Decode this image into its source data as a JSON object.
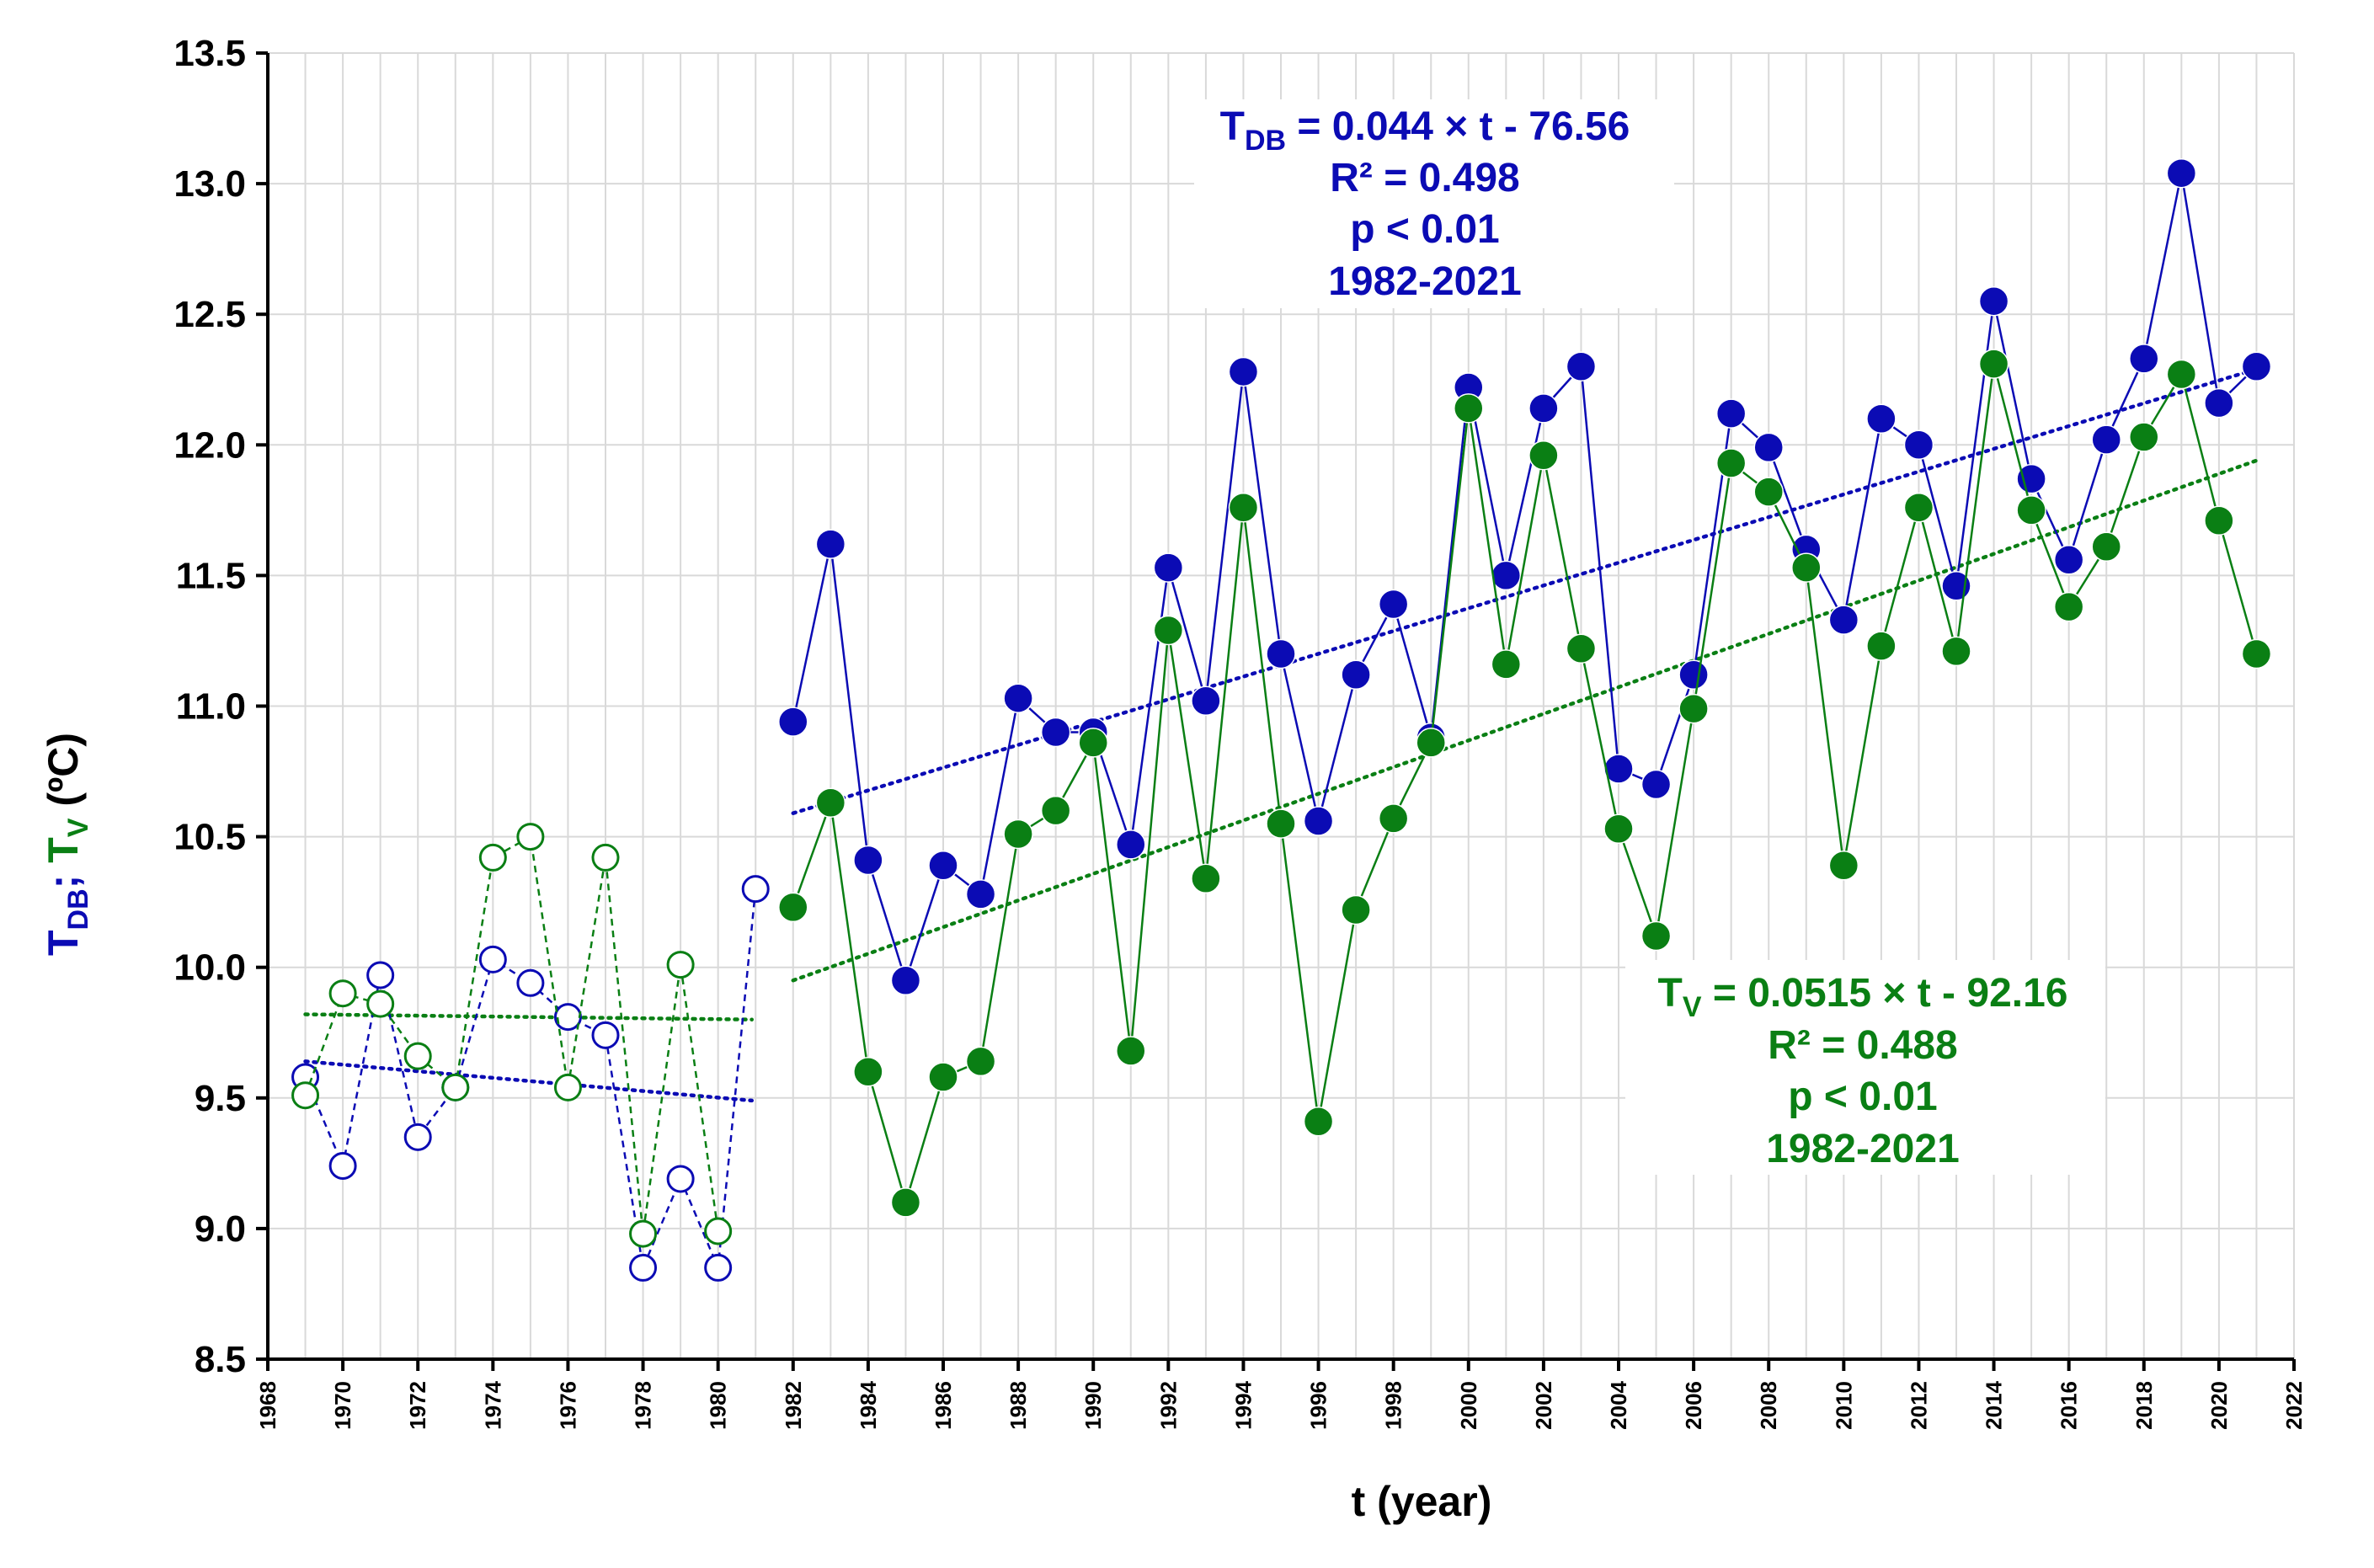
{
  "chart_data": {
    "type": "scatter",
    "xlabel": "t (year)",
    "ylabel": {
      "prefix": "T",
      "db_sub": "DB",
      "sep": "; ",
      "tv_prefix": "T",
      "v_sub": "V",
      "unit": " (ºC)"
    },
    "xlim": [
      1968,
      2022
    ],
    "ylim": [
      8.5,
      13.5
    ],
    "x_ticks": [
      1968,
      1970,
      1972,
      1974,
      1976,
      1978,
      1980,
      1982,
      1984,
      1986,
      1988,
      1990,
      1992,
      1994,
      1996,
      1998,
      2000,
      2002,
      2004,
      2006,
      2008,
      2010,
      2012,
      2014,
      2016,
      2018,
      2020,
      2022
    ],
    "y_ticks": [
      "8.5",
      "9.0",
      "9.5",
      "10.0",
      "10.5",
      "11.0",
      "11.5",
      "12.0",
      "12.5",
      "13.0",
      "13.5"
    ],
    "grid": true,
    "colors": {
      "tdb": "#0b0bb4",
      "tv": "#0a7f14"
    },
    "series": [
      {
        "name": "T_DB 1969-1981",
        "color": "#0b0bb4",
        "style": "open-dashed",
        "x": [
          1969,
          1970,
          1971,
          1972,
          1973,
          1974,
          1975,
          1976,
          1977,
          1978,
          1979,
          1980,
          1981
        ],
        "values": [
          9.58,
          9.24,
          9.97,
          9.35,
          9.54,
          10.03,
          9.94,
          9.81,
          9.74,
          8.85,
          9.19,
          8.85,
          10.3
        ]
      },
      {
        "name": "T_V 1969-1981",
        "color": "#0a7f14",
        "style": "open-dashed",
        "x": [
          1969,
          1970,
          1971,
          1972,
          1973,
          1974,
          1975,
          1976,
          1977,
          1978,
          1979,
          1980
        ],
        "values": [
          9.51,
          9.9,
          9.86,
          9.66,
          9.54,
          10.42,
          10.5,
          9.54,
          10.42,
          8.98,
          10.01,
          8.99
        ]
      },
      {
        "name": "T_DB 1982-2021",
        "color": "#0b0bb4",
        "style": "filled-solid",
        "x": [
          1982,
          1983,
          1984,
          1985,
          1986,
          1987,
          1988,
          1989,
          1990,
          1991,
          1992,
          1993,
          1994,
          1995,
          1996,
          1997,
          1998,
          1999,
          2000,
          2001,
          2002,
          2003,
          2004,
          2005,
          2006,
          2007,
          2008,
          2009,
          2010,
          2011,
          2012,
          2013,
          2014,
          2015,
          2016,
          2017,
          2018,
          2019,
          2020,
          2021
        ],
        "values": [
          10.94,
          11.62,
          10.41,
          9.95,
          10.39,
          10.28,
          11.03,
          10.9,
          10.9,
          10.47,
          11.53,
          11.02,
          12.28,
          11.2,
          10.56,
          11.12,
          11.39,
          10.88,
          12.22,
          11.5,
          12.14,
          12.3,
          10.76,
          10.7,
          11.12,
          12.12,
          11.99,
          11.6,
          11.33,
          12.1,
          12.0,
          11.46,
          12.55,
          11.87,
          11.56,
          12.02,
          12.33,
          13.04,
          12.16,
          12.3
        ]
      },
      {
        "name": "T_V 1982-2021",
        "color": "#0a7f14",
        "style": "filled-solid",
        "x": [
          1982,
          1983,
          1984,
          1985,
          1986,
          1987,
          1988,
          1989,
          1990,
          1991,
          1992,
          1993,
          1994,
          1995,
          1996,
          1997,
          1998,
          1999,
          2000,
          2001,
          2002,
          2003,
          2004,
          2005,
          2006,
          2007,
          2008,
          2009,
          2010,
          2011,
          2012,
          2013,
          2014,
          2015,
          2016,
          2017,
          2018,
          2019,
          2020,
          2021
        ],
        "values": [
          10.23,
          10.63,
          9.6,
          9.1,
          9.58,
          9.64,
          10.51,
          10.6,
          10.86,
          9.68,
          11.29,
          10.34,
          11.76,
          10.55,
          9.41,
          10.22,
          10.57,
          10.86,
          12.14,
          11.16,
          11.96,
          11.22,
          10.53,
          10.12,
          10.99,
          11.93,
          11.82,
          11.53,
          10.39,
          11.23,
          11.76,
          11.21,
          12.31,
          11.75,
          11.38,
          11.61,
          12.03,
          12.27,
          11.71,
          11.2
        ]
      }
    ],
    "trendlines": [
      {
        "name": "T_DB trend 1969-1981",
        "color": "#0b0bb4",
        "x": [
          1969,
          1980.9
        ],
        "values": [
          9.64,
          9.49
        ]
      },
      {
        "name": "T_V trend 1969-1981",
        "color": "#0a7f14",
        "x": [
          1969,
          1980.9
        ],
        "values": [
          9.82,
          9.8
        ]
      },
      {
        "name": "T_DB trend 1982-2021",
        "color": "#0b0bb4",
        "x": [
          1982,
          2021
        ],
        "values": [
          10.59,
          12.29
        ]
      },
      {
        "name": "T_V trend 1982-2021",
        "color": "#0a7f14",
        "x": [
          1982,
          2021
        ],
        "values": [
          9.95,
          11.94
        ]
      }
    ],
    "annotations": {
      "tdb": {
        "eq_prefix": "T",
        "eq_sub": "DB",
        "eq_rest": " = 0.044 × t - 76.56",
        "r2": "R² = 0.498",
        "p": "p < 0.01",
        "period": "1982-2021"
      },
      "tv": {
        "eq_prefix": "T",
        "eq_sub": "V",
        "eq_rest": " = 0.0515 × t - 92.16",
        "r2": "R² = 0.488",
        "p": "p < 0.01",
        "period": "1982-2021"
      }
    }
  }
}
